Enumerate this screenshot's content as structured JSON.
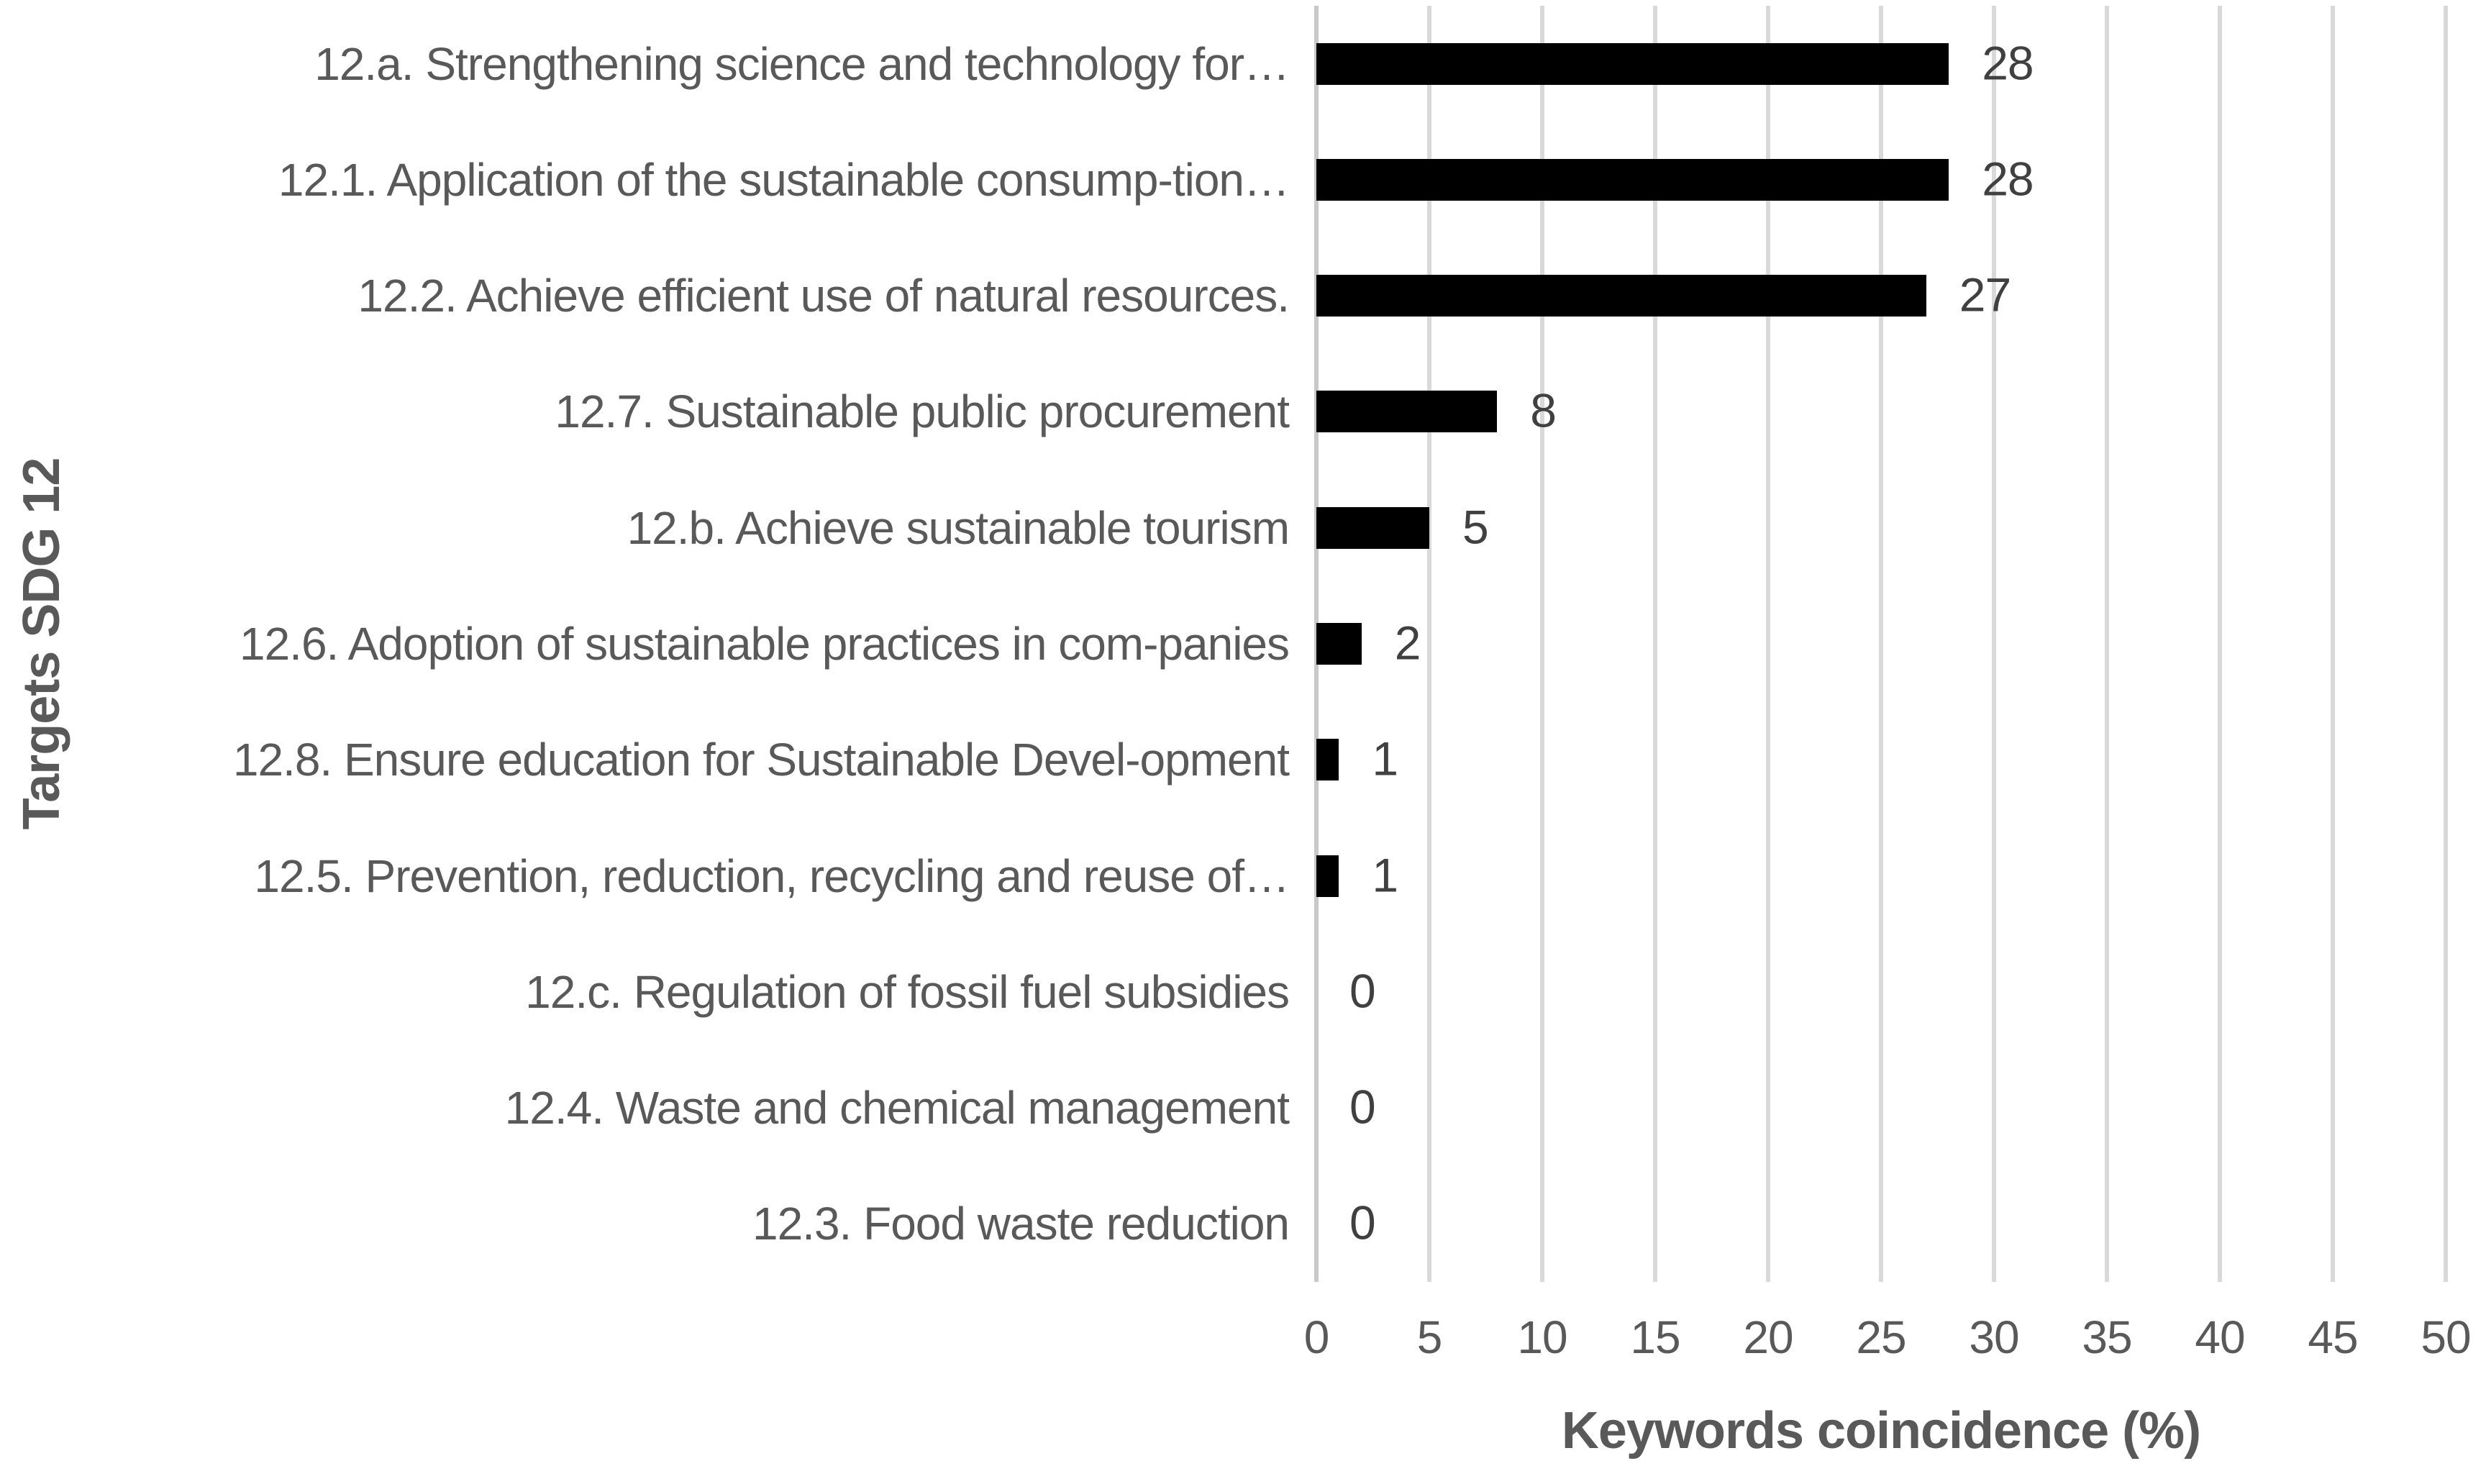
{
  "chart_data": {
    "type": "bar",
    "orientation": "horizontal",
    "title": "",
    "xlabel": "Keywords coincidence (%)",
    "ylabel": "Targets SDG 12",
    "xlim": [
      0,
      50
    ],
    "xticks": [
      0,
      5,
      10,
      15,
      20,
      25,
      30,
      35,
      40,
      45,
      50
    ],
    "grid": true,
    "legend": false,
    "categories": [
      "12.a. Strengthening science and technology for…",
      "12.1. Application of the sustainable consump-tion…",
      "12.2. Achieve efficient use of natural resources.",
      "12.7. Sustainable public procurement",
      "12.b. Achieve sustainable tourism",
      "12.6. Adoption of sustainable practices in com-panies",
      "12.8. Ensure education for Sustainable Devel-opment",
      "12.5. Prevention, reduction, recycling and reuse of…",
      "12.c. Regulation of fossil fuel subsidies",
      "12.4. Waste and chemical management",
      "12.3. Food waste reduction"
    ],
    "values": [
      28,
      28,
      27,
      8,
      5,
      2,
      1,
      1,
      0,
      0,
      0
    ],
    "data_labels": [
      "28",
      "28",
      "27",
      "8",
      "5",
      "2",
      "1",
      "1",
      "0",
      "0",
      "0"
    ],
    "colors": {
      "bar": "#000000",
      "gridline": "#d9d9d9",
      "axis_line": "#c9c9c9",
      "category_text": "#595959",
      "tick_text": "#595959",
      "value_text": "#404040",
      "axis_title_text": "#595959",
      "background": "#ffffff"
    }
  }
}
